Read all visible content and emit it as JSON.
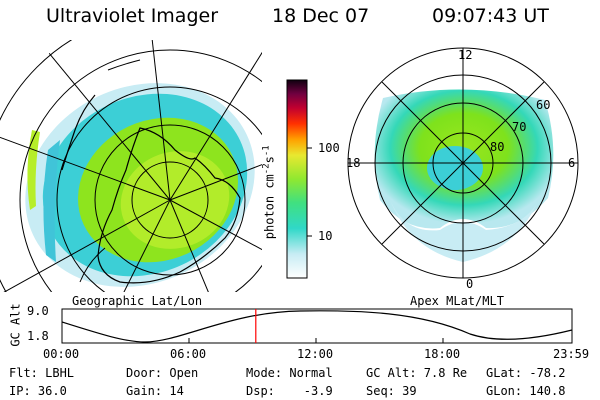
{
  "header": {
    "instrument": "Ultraviolet Imager",
    "date": "18 Dec 07",
    "time": "09:07:43 UT"
  },
  "geo_panel": {
    "caption": "Geographic Lat/Lon"
  },
  "apex_panel": {
    "caption": "Apex MLat/MLT",
    "mlt_labels": {
      "top": "12",
      "left": "18",
      "right": "6",
      "bottom": "0"
    },
    "lat_labels": [
      "60",
      "70",
      "80"
    ]
  },
  "colorbar": {
    "unit_prefix": "photon cm",
    "unit_exp1": "-2",
    "unit_mid": "s",
    "unit_exp2": "-1",
    "tick_100": "100",
    "tick_10": "10"
  },
  "altitude_plot": {
    "ylabel": "GC Alt",
    "ymax_label": "9.0",
    "ymin_label": "1.8",
    "x_ticks": [
      "00:00",
      "06:00",
      "12:00",
      "18:00",
      "23:59"
    ],
    "current_time_fraction": 0.38
  },
  "status": {
    "filter": "Flt: LBHL",
    "ip": "IP: 36.0",
    "door": "Door: Open",
    "gain": "Gain: 14",
    "mode": "Mode: Normal",
    "dsp": "Dsp:    -3.9",
    "gc_alt": "GC Alt: 7.8 Re",
    "seq": "Seq: 39",
    "glat": "GLat: -78.2",
    "glon": "GLon: 140.8"
  },
  "colors": {
    "aurora_green": "#7ee21c",
    "aurora_lime": "#b6ee2a",
    "aurora_cyan": "#28d8c0",
    "aurora_teal": "#40c4d8",
    "aurora_pale": "#c8ecf4",
    "time_marker": "#ff0000"
  }
}
